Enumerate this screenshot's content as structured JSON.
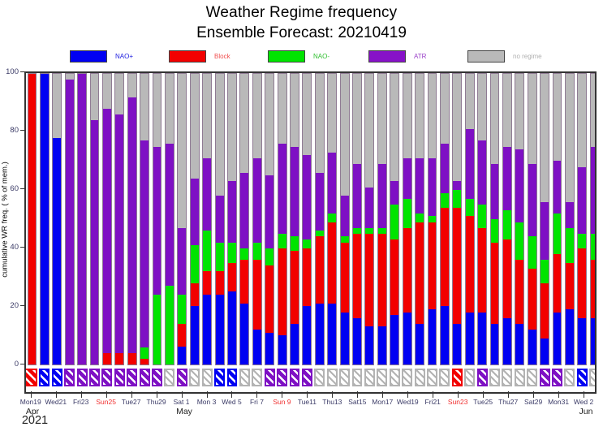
{
  "title": {
    "line1": "Weather Regime frequency",
    "line2": "Ensemble Forecast: 20210419"
  },
  "colors": {
    "nao_plus": "#0000f2",
    "block": "#f20000",
    "nao_minus": "#00e400",
    "atr": "#7e10c4",
    "none": "#b9b9b9",
    "frame": "#333333",
    "bar_outline": "#8f7b93",
    "tick_text": "#3a3a66",
    "sunday_text": "#f03030",
    "gray_box": "#b3b3b3"
  },
  "legend": {
    "items": [
      {
        "name": "nao_plus",
        "label": "NAO+",
        "swatch": "#0000f2",
        "text_color": "#2020e0"
      },
      {
        "name": "block",
        "label": "Block",
        "swatch": "#f20000",
        "text_color": "#f05050"
      },
      {
        "name": "nao_minus",
        "label": "NAO-",
        "swatch": "#00e400",
        "text_color": "#30c030"
      },
      {
        "name": "atr",
        "label": "ATR",
        "swatch": "#8712c8",
        "text_color": "#9a40c8"
      },
      {
        "name": "none",
        "label": "no regime",
        "swatch": "#b9b9b9",
        "text_color": "#b0b0b0"
      }
    ]
  },
  "y_axis": {
    "label": "cumulative WR freq. ( % of mem.)",
    "ticks": [
      0,
      20,
      40,
      60,
      80,
      100
    ]
  },
  "x_axis": {
    "months": [
      "Apr",
      "May",
      "Jun"
    ],
    "year": "2021"
  },
  "chart_data": {
    "type": "bar",
    "stacked": true,
    "title": "Weather Regime frequency — Ensemble Forecast: 20210419",
    "ylabel": "cumulative WR freq. ( % of mem.)",
    "ylim": [
      0,
      100
    ],
    "series_names": [
      "NAO+",
      "Block",
      "NAO-",
      "ATR",
      "no regime"
    ],
    "note": "values are percent of ensemble members; marker = hatched daily-regime box below axis; sun=red weekday label; half=bar clipped by frame edge",
    "bars": [
      {
        "d": "Apr 19",
        "b": 0,
        "r": 100,
        "g": 0,
        "p": 0,
        "n": 0,
        "m": "block",
        "t": "Mon19"
      },
      {
        "d": "Apr 20",
        "b": 100,
        "r": 0,
        "g": 0,
        "p": 0,
        "n": 0,
        "m": "nao_plus"
      },
      {
        "d": "Apr 21",
        "b": 78,
        "r": 0,
        "g": 0,
        "p": 0,
        "n": 22,
        "m": "nao_plus",
        "t": "Wed21"
      },
      {
        "d": "Apr 22",
        "b": 0,
        "r": 0,
        "g": 0,
        "p": 98,
        "n": 2,
        "m": "atr"
      },
      {
        "d": "Apr 23",
        "b": 0,
        "r": 0,
        "g": 0,
        "p": 100,
        "n": 0,
        "m": "atr",
        "t": "Fri23"
      },
      {
        "d": "Apr 24",
        "b": 0,
        "r": 0,
        "g": 0,
        "p": 84,
        "n": 16,
        "m": "atr"
      },
      {
        "d": "Apr 25",
        "b": 0,
        "r": 4,
        "g": 0,
        "p": 84,
        "n": 12,
        "m": "atr",
        "t": "Sun25",
        "sun": true
      },
      {
        "d": "Apr 26",
        "b": 0,
        "r": 4,
        "g": 0,
        "p": 82,
        "n": 14,
        "m": "atr"
      },
      {
        "d": "Apr 27",
        "b": 0,
        "r": 4,
        "g": 0,
        "p": 88,
        "n": 8,
        "m": "atr",
        "t": "Tue27"
      },
      {
        "d": "Apr 28",
        "b": 0,
        "r": 2,
        "g": 4,
        "p": 71,
        "n": 23,
        "m": "atr"
      },
      {
        "d": "Apr 29",
        "b": 0,
        "r": 0,
        "g": 24,
        "p": 51,
        "n": 25,
        "m": "atr",
        "t": "Thu29"
      },
      {
        "d": "Apr 30",
        "b": 0,
        "r": 0,
        "g": 27,
        "p": 49,
        "n": 24,
        "m": "none"
      },
      {
        "d": "May 1",
        "b": 6,
        "r": 8,
        "g": 10,
        "p": 23,
        "n": 53,
        "m": "atr",
        "t": "Sat 1"
      },
      {
        "d": "May 2",
        "b": 20,
        "r": 8,
        "g": 13,
        "p": 23,
        "n": 36,
        "m": "none"
      },
      {
        "d": "May 3",
        "b": 24,
        "r": 8,
        "g": 14,
        "p": 25,
        "n": 29,
        "m": "none",
        "t": "Mon 3"
      },
      {
        "d": "May 4",
        "b": 24,
        "r": 8,
        "g": 10,
        "p": 16,
        "n": 42,
        "m": "nao_plus"
      },
      {
        "d": "May 5",
        "b": 25,
        "r": 10,
        "g": 7,
        "p": 21,
        "n": 37,
        "m": "nao_plus",
        "t": "Wed 5"
      },
      {
        "d": "May 6",
        "b": 21,
        "r": 15,
        "g": 4,
        "p": 26,
        "n": 34,
        "m": "none"
      },
      {
        "d": "May 7",
        "b": 12,
        "r": 24,
        "g": 6,
        "p": 29,
        "n": 29,
        "m": "none",
        "t": "Fri 7"
      },
      {
        "d": "May 8",
        "b": 11,
        "r": 23,
        "g": 6,
        "p": 25,
        "n": 35,
        "m": "atr"
      },
      {
        "d": "May 9",
        "b": 10,
        "r": 30,
        "g": 5,
        "p": 31,
        "n": 24,
        "m": "atr",
        "t": "Sun 9",
        "sun": true
      },
      {
        "d": "May 10",
        "b": 14,
        "r": 25,
        "g": 5,
        "p": 31,
        "n": 25,
        "m": "atr"
      },
      {
        "d": "May 11",
        "b": 20,
        "r": 20,
        "g": 3,
        "p": 29,
        "n": 28,
        "m": "atr",
        "t": "Tue11"
      },
      {
        "d": "May 12",
        "b": 21,
        "r": 23,
        "g": 2,
        "p": 20,
        "n": 34,
        "m": "none"
      },
      {
        "d": "May 13",
        "b": 21,
        "r": 28,
        "g": 3,
        "p": 21,
        "n": 27,
        "m": "none",
        "t": "Thu13"
      },
      {
        "d": "May 14",
        "b": 18,
        "r": 24,
        "g": 2,
        "p": 14,
        "n": 42,
        "m": "none"
      },
      {
        "d": "May 15",
        "b": 16,
        "r": 29,
        "g": 2,
        "p": 22,
        "n": 31,
        "m": "none",
        "t": "Sat15"
      },
      {
        "d": "May 16",
        "b": 13,
        "r": 32,
        "g": 2,
        "p": 14,
        "n": 39,
        "m": "none"
      },
      {
        "d": "May 17",
        "b": 13,
        "r": 32,
        "g": 2,
        "p": 22,
        "n": 31,
        "m": "none",
        "t": "Mon17"
      },
      {
        "d": "May 18",
        "b": 17,
        "r": 26,
        "g": 12,
        "p": 8,
        "n": 37,
        "m": "none"
      },
      {
        "d": "May 19",
        "b": 18,
        "r": 29,
        "g": 10,
        "p": 14,
        "n": 29,
        "m": "none",
        "t": "Wed19"
      },
      {
        "d": "May 20",
        "b": 14,
        "r": 35,
        "g": 3,
        "p": 19,
        "n": 29,
        "m": "none"
      },
      {
        "d": "May 21",
        "b": 19,
        "r": 30,
        "g": 2,
        "p": 20,
        "n": 29,
        "m": "none",
        "t": "Fri21"
      },
      {
        "d": "May 22",
        "b": 20,
        "r": 34,
        "g": 5,
        "p": 17,
        "n": 24,
        "m": "none"
      },
      {
        "d": "May 23",
        "b": 14,
        "r": 40,
        "g": 6,
        "p": 3,
        "n": 37,
        "m": "block",
        "t": "Sun23",
        "sun": true
      },
      {
        "d": "May 24",
        "b": 18,
        "r": 33,
        "g": 6,
        "p": 24,
        "n": 19,
        "m": "none"
      },
      {
        "d": "May 25",
        "b": 18,
        "r": 29,
        "g": 8,
        "p": 22,
        "n": 23,
        "m": "atr",
        "t": "Tue25"
      },
      {
        "d": "May 26",
        "b": 14,
        "r": 28,
        "g": 8,
        "p": 19,
        "n": 31,
        "m": "none"
      },
      {
        "d": "May 27",
        "b": 16,
        "r": 27,
        "g": 10,
        "p": 22,
        "n": 25,
        "m": "none",
        "t": "Thu27"
      },
      {
        "d": "May 28",
        "b": 14,
        "r": 22,
        "g": 13,
        "p": 25,
        "n": 26,
        "m": "none"
      },
      {
        "d": "May 29",
        "b": 12,
        "r": 21,
        "g": 11,
        "p": 25,
        "n": 31,
        "m": "none",
        "t": "Sat29"
      },
      {
        "d": "May 30",
        "b": 9,
        "r": 19,
        "g": 8,
        "p": 20,
        "n": 44,
        "m": "atr"
      },
      {
        "d": "May 31",
        "b": 18,
        "r": 20,
        "g": 14,
        "p": 18,
        "n": 30,
        "m": "atr",
        "t": "Mon31"
      },
      {
        "d": "Jun 1",
        "b": 19,
        "r": 16,
        "g": 12,
        "p": 9,
        "n": 44,
        "m": "none"
      },
      {
        "d": "Jun 2",
        "b": 16,
        "r": 24,
        "g": 5,
        "p": 23,
        "n": 32,
        "m": "nao_plus",
        "t": "Wed 2"
      },
      {
        "d": "Jun 3",
        "b": 16,
        "r": 20,
        "g": 9,
        "p": 30,
        "n": 25,
        "m": "none",
        "half": true
      }
    ]
  }
}
